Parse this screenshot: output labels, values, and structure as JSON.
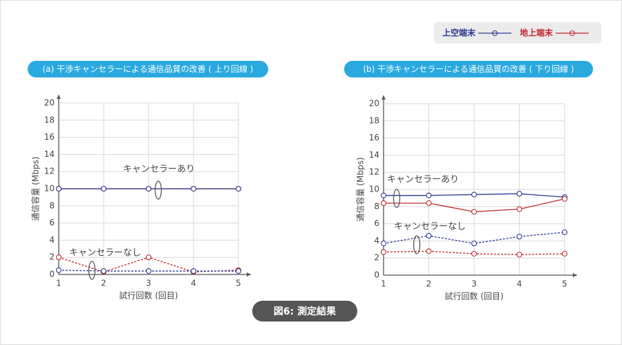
{
  "legend": [
    {
      "name": "上空端末",
      "color": "#2b3990"
    },
    {
      "name": "地上端末",
      "color": "#c1272d"
    }
  ],
  "caption": "図6: 測定結果",
  "chart_data": [
    {
      "type": "line",
      "title": "(a) 干渉キャンセラーによる通信品質の改善 ( 上り回線 )",
      "xlabel": "試行回数 (回目)",
      "ylabel": "通信容量 (Mbps)",
      "x": [
        1,
        2,
        3,
        4,
        5
      ],
      "xlim": [
        1,
        5
      ],
      "xticks": [
        1,
        2,
        3,
        4,
        5
      ],
      "ylim": [
        0,
        20
      ],
      "yticks": [
        0,
        2,
        4,
        6,
        8,
        10,
        12,
        14,
        16,
        18,
        20
      ],
      "grid": true,
      "annotations": [
        "キャンセラーあり",
        "キャンセラーなし"
      ],
      "series": [
        {
          "color": "#c1272d",
          "dashed": false,
          "values": [
            10,
            10,
            10,
            10,
            10
          ]
        },
        {
          "color": "#2b3990",
          "dashed": false,
          "values": [
            10,
            10,
            10,
            10,
            10
          ]
        },
        {
          "color": "#c1272d",
          "dashed": true,
          "values": [
            2,
            0.3,
            2,
            0.3,
            0.5
          ]
        },
        {
          "color": "#2b3990",
          "dashed": true,
          "values": [
            0.5,
            0.4,
            0.4,
            0.4,
            0.4
          ]
        }
      ]
    },
    {
      "type": "line",
      "title": "(b) 干渉キャンセラーによる通信品質の改善 ( 下り回線 )",
      "xlabel": "試行回数 (回目)",
      "ylabel": "通信容量 (Mbps)",
      "x": [
        1,
        2,
        3,
        4,
        5
      ],
      "xlim": [
        1,
        5
      ],
      "xticks": [
        1,
        2,
        3,
        4,
        5
      ],
      "ylim": [
        0,
        20
      ],
      "yticks": [
        0,
        2,
        4,
        6,
        8,
        10,
        12,
        14,
        16,
        18,
        20
      ],
      "grid": true,
      "annotations": [
        "キャンセラーあり",
        "キャンセラーなし"
      ],
      "series": [
        {
          "color": "#2b3990",
          "dashed": false,
          "values": [
            9.3,
            9.3,
            9.4,
            9.5,
            9.1
          ]
        },
        {
          "color": "#c1272d",
          "dashed": false,
          "values": [
            8.4,
            8.4,
            7.4,
            7.7,
            8.9
          ]
        },
        {
          "color": "#2b3990",
          "dashed": true,
          "values": [
            3.7,
            4.6,
            3.7,
            4.5,
            5.0
          ]
        },
        {
          "color": "#c1272d",
          "dashed": true,
          "values": [
            2.7,
            2.8,
            2.5,
            2.4,
            2.5
          ]
        }
      ]
    }
  ]
}
